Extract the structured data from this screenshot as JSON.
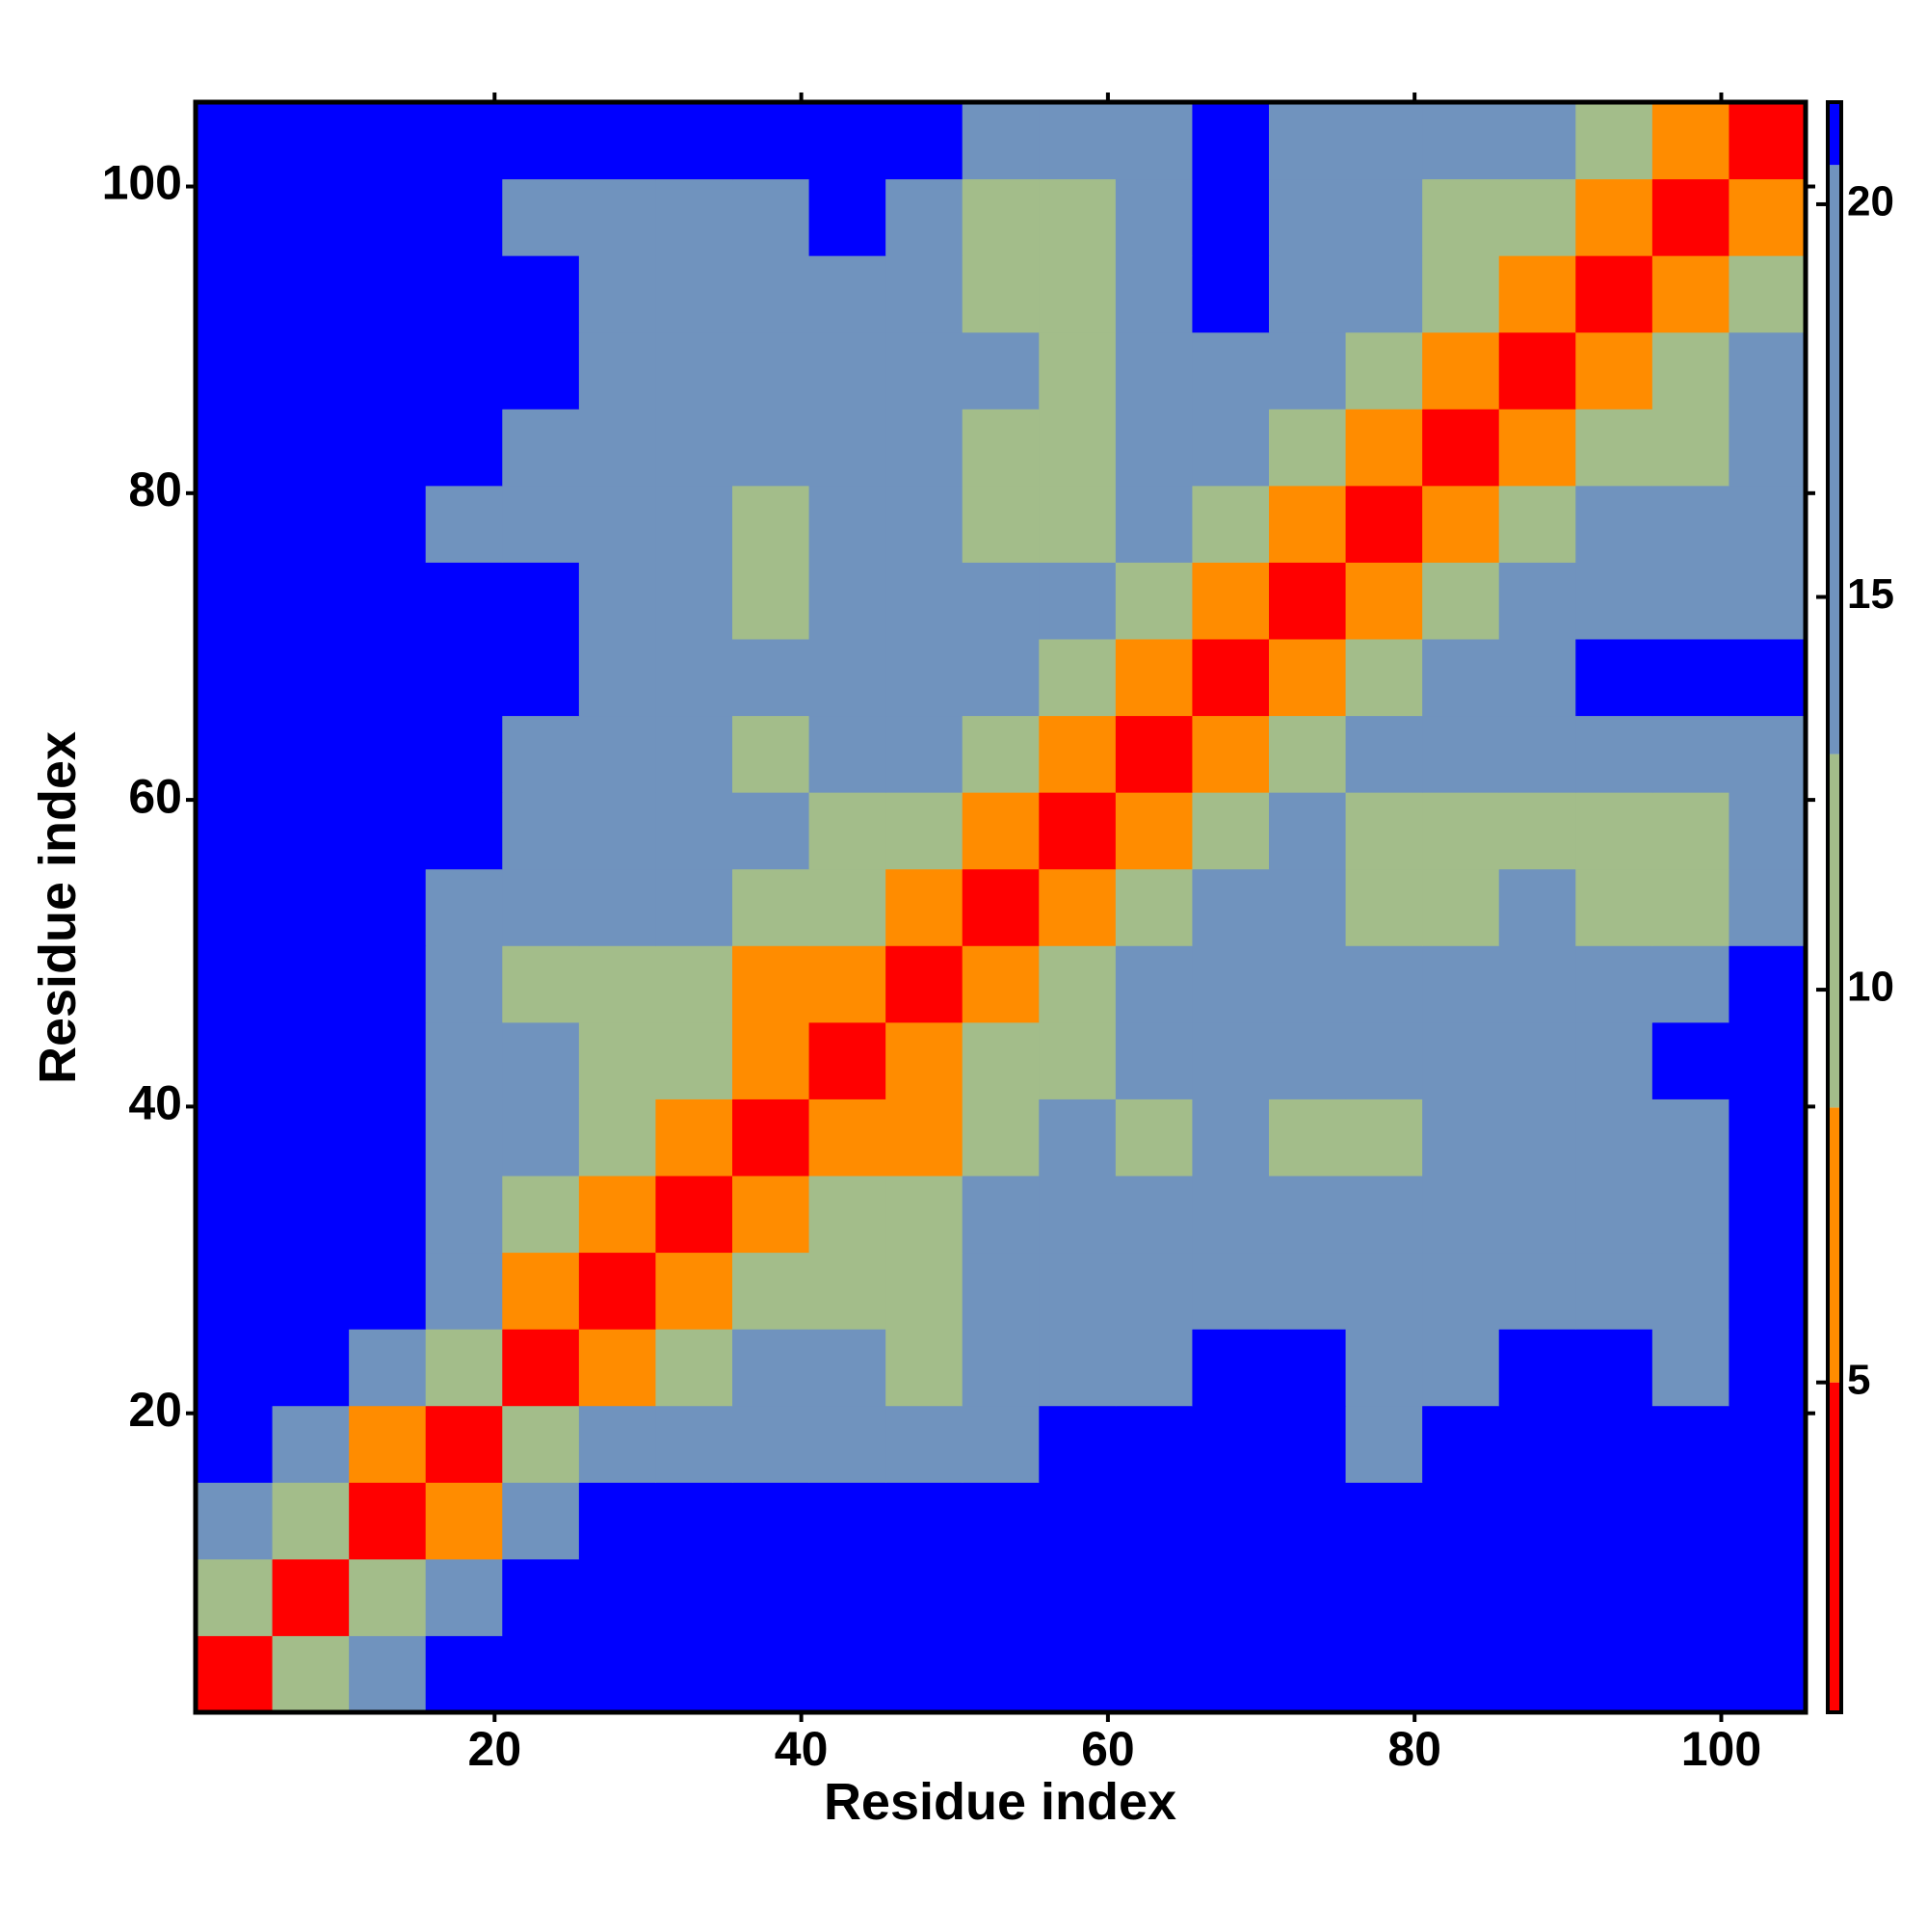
{
  "chart_data": {
    "type": "heatmap",
    "x_label": "Residue index",
    "y_label": "Residue index",
    "x_bins": [
      0.5,
      5.5,
      10.5,
      15.5,
      20.5,
      25.5,
      30.5,
      35.5,
      40.5,
      45.5,
      50.5,
      55.5,
      60.5,
      65.5,
      70.5,
      75.5,
      80.5,
      85.5,
      90.5,
      95.5,
      100.5,
      105.5
    ],
    "y_bins": [
      0.5,
      5.5,
      10.5,
      15.5,
      20.5,
      25.5,
      30.5,
      35.5,
      40.5,
      45.5,
      50.5,
      55.5,
      60.5,
      65.5,
      70.5,
      75.5,
      80.5,
      85.5,
      90.5,
      95.5,
      100.5,
      105.5
    ],
    "xlim": [
      0.5,
      105.5
    ],
    "ylim": [
      0.5,
      105.5
    ],
    "xticks": [
      20,
      40,
      60,
      80,
      100
    ],
    "yticks": [
      20,
      40,
      60,
      80,
      100
    ],
    "values": [
      [
        3,
        9,
        16,
        21,
        21,
        21,
        21,
        21,
        21,
        21,
        21,
        21,
        21,
        21,
        21,
        21,
        21,
        21,
        21,
        21,
        21
      ],
      [
        9,
        3,
        9,
        15,
        21,
        21,
        21,
        21,
        21,
        21,
        21,
        21,
        21,
        21,
        21,
        21,
        21,
        21,
        21,
        21,
        21
      ],
      [
        16,
        9,
        3,
        8,
        15,
        21,
        21,
        21,
        21,
        21,
        21,
        21,
        21,
        21,
        21,
        21,
        21,
        21,
        21,
        21,
        21
      ],
      [
        21,
        15,
        8,
        3,
        9,
        14,
        17,
        19,
        17,
        17,
        19,
        21,
        21,
        21,
        21,
        20,
        21,
        21,
        21,
        21,
        21
      ],
      [
        21,
        21,
        15,
        9,
        3,
        8,
        11,
        13,
        13,
        10,
        15,
        18,
        18,
        21,
        21,
        17,
        17,
        21,
        21,
        20,
        21
      ],
      [
        21,
        21,
        21,
        14,
        8,
        3,
        7,
        11,
        12,
        12,
        15,
        15,
        15,
        18,
        18,
        17,
        17,
        19,
        18,
        17,
        21
      ],
      [
        21,
        21,
        21,
        17,
        11,
        7,
        3,
        6,
        9,
        9,
        14,
        13,
        14,
        17,
        15,
        13,
        14,
        17,
        14,
        13,
        21
      ],
      [
        21,
        21,
        21,
        19,
        13,
        11,
        6,
        3,
        6,
        8,
        10,
        13,
        12,
        14,
        12,
        11,
        14,
        16,
        15,
        15,
        21
      ],
      [
        21,
        21,
        21,
        17,
        13,
        12,
        9,
        6,
        3,
        6,
        10,
        12,
        14,
        13,
        14,
        13,
        16,
        19,
        20,
        21,
        21
      ],
      [
        21,
        21,
        21,
        17,
        10,
        12,
        9,
        8,
        6,
        3,
        7,
        10,
        13,
        16,
        15,
        14,
        14,
        15,
        17,
        18,
        21
      ],
      [
        21,
        21,
        21,
        19,
        15,
        15,
        14,
        10,
        10,
        7,
        3,
        6,
        9,
        13,
        15,
        11,
        12,
        14,
        12,
        12,
        17
      ],
      [
        21,
        21,
        21,
        21,
        18,
        15,
        13,
        13,
        12,
        10,
        6,
        3,
        6,
        9,
        13,
        10,
        11,
        12,
        9,
        10,
        17
      ],
      [
        21,
        21,
        21,
        21,
        18,
        15,
        14,
        12,
        14,
        13,
        9,
        6,
        3,
        7,
        10,
        13,
        14,
        15,
        16,
        15,
        20
      ],
      [
        21,
        21,
        21,
        21,
        21,
        18,
        17,
        14,
        13,
        16,
        13,
        9,
        7,
        3,
        6,
        10,
        15,
        19,
        21,
        21,
        21
      ],
      [
        21,
        21,
        21,
        21,
        21,
        18,
        15,
        12,
        14,
        15,
        15,
        13,
        10,
        6,
        3,
        7,
        11,
        15,
        18,
        19,
        19
      ],
      [
        21,
        21,
        21,
        20,
        17,
        17,
        13,
        11,
        13,
        14,
        11,
        10,
        13,
        10,
        7,
        3,
        6,
        10,
        13,
        13,
        15
      ],
      [
        21,
        21,
        21,
        21,
        17,
        17,
        14,
        14,
        16,
        14,
        12,
        11,
        14,
        15,
        11,
        6,
        3,
        7,
        10,
        10,
        13
      ],
      [
        21,
        21,
        21,
        21,
        21,
        19,
        17,
        16,
        19,
        15,
        14,
        12,
        15,
        19,
        15,
        10,
        7,
        3,
        7,
        11,
        14
      ],
      [
        21,
        21,
        21,
        21,
        21,
        18,
        14,
        15,
        20,
        17,
        12,
        9,
        16,
        21,
        18,
        13,
        10,
        7,
        3,
        7,
        10
      ],
      [
        21,
        21,
        21,
        21,
        20,
        17,
        13,
        15,
        21,
        18,
        12,
        10,
        15,
        21,
        19,
        13,
        10,
        11,
        7,
        3,
        7
      ],
      [
        21,
        21,
        21,
        21,
        21,
        21,
        21,
        21,
        21,
        21,
        17,
        17,
        20,
        21,
        19,
        15,
        13,
        14,
        10,
        7,
        3
      ]
    ],
    "colorscale": [
      {
        "value": 0.8,
        "color": "#ff0000"
      },
      {
        "value": 5,
        "color": "#ff8c00"
      },
      {
        "value": 8.5,
        "color": "#a3bd8a"
      },
      {
        "value": 13,
        "color": "#7093be"
      },
      {
        "value": 20.5,
        "color": "#0000ff"
      }
    ],
    "clim": [
      0.8,
      21.3
    ],
    "colorbar_ticks": [
      5,
      10,
      15,
      20
    ]
  }
}
